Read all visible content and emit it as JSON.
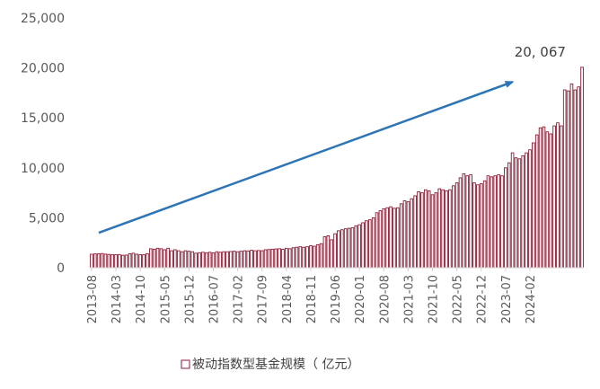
{
  "chart_data": {
    "type": "bar",
    "ylim": [
      0,
      25000
    ],
    "y_ticks": [
      "0",
      "5,000",
      "10,000",
      "15,000",
      "20,000",
      "25,000"
    ],
    "x_tick_labels": [
      "2013-08",
      "2014-03",
      "2014-10",
      "2015-05",
      "2015-12",
      "2016-07",
      "2017-02",
      "2017-09",
      "2018-04",
      "2018-11",
      "2019-06",
      "2020-01",
      "2020-08",
      "2021-03",
      "2021-10",
      "2022-05",
      "2022-12",
      "2023-07",
      "2024-02"
    ],
    "series": [
      {
        "name": "被动指数型基金规模（亿元）",
        "color": "#8B1A33",
        "start": "2013-08",
        "values": [
          1350,
          1380,
          1400,
          1420,
          1360,
          1330,
          1300,
          1310,
          1320,
          1250,
          1260,
          1400,
          1450,
          1350,
          1300,
          1300,
          1400,
          1900,
          1850,
          1950,
          1900,
          1800,
          1950,
          1700,
          1800,
          1700,
          1600,
          1700,
          1650,
          1600,
          1450,
          1500,
          1550,
          1500,
          1550,
          1480,
          1600,
          1550,
          1600,
          1600,
          1620,
          1650,
          1600,
          1650,
          1700,
          1680,
          1750,
          1700,
          1720,
          1700,
          1800,
          1820,
          1850,
          1880,
          1900,
          1850,
          1950,
          1900,
          2000,
          2050,
          2100,
          2050,
          2100,
          2200,
          2150,
          2300,
          2400,
          3100,
          3200,
          2800,
          3400,
          3700,
          3800,
          3900,
          3950,
          4000,
          4200,
          4300,
          4500,
          4700,
          4800,
          5000,
          5500,
          5700,
          5900,
          6000,
          6100,
          5950,
          6000,
          6400,
          6700,
          6600,
          6900,
          7200,
          7600,
          7500,
          7800,
          7700,
          7300,
          7500,
          7900,
          7800,
          7700,
          7800,
          8200,
          8500,
          9000,
          9400,
          9200,
          9300,
          8500,
          8300,
          8400,
          8700,
          9200,
          9100,
          9200,
          9300,
          9200,
          10000,
          10500,
          11500,
          11000,
          10900,
          11200,
          11500,
          11800,
          12500,
          13300,
          14000,
          14100,
          13600,
          13400,
          14200,
          14500,
          14200,
          17800,
          17700,
          18400,
          17800,
          18100,
          20067
        ]
      }
    ],
    "annotations": [
      {
        "text": "20, 067",
        "x": "2024-07",
        "y": 20067
      }
    ],
    "trend_arrow": {
      "from": {
        "x": "2013-08",
        "y": 3500
      },
      "to": {
        "x": "2023-09",
        "y": 18600
      },
      "color": "#2E75B6"
    },
    "legend": {
      "placement": "bottom-center",
      "label": "被动指数型基金规模（ 亿元）"
    },
    "grid": false
  }
}
